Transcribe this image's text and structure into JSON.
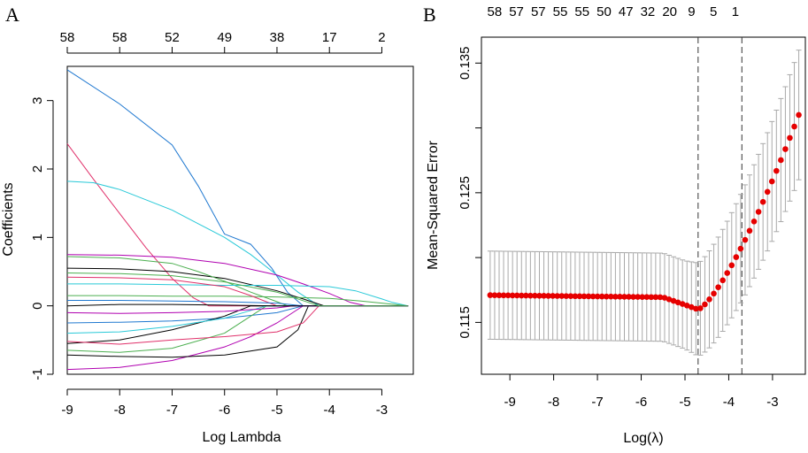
{
  "chart_data": [
    {
      "panel": "A",
      "type": "line",
      "title": "",
      "xlabel": "Log Lambda",
      "ylabel": "Coefficients",
      "xlim": [
        -9.0,
        -2.4
      ],
      "ylim": [
        -1.0,
        3.5
      ],
      "x_ticks": [
        -9,
        -8,
        -7,
        -6,
        -5,
        -4,
        -3
      ],
      "y_ticks": [
        -1,
        0,
        1,
        2,
        3
      ],
      "top_axis_labels": [
        {
          "x": -9,
          "label": "58"
        },
        {
          "x": -8,
          "label": "58"
        },
        {
          "x": -7,
          "label": "52"
        },
        {
          "x": -6,
          "label": "49"
        },
        {
          "x": -5,
          "label": "38"
        },
        {
          "x": -4,
          "label": "17"
        },
        {
          "x": -3,
          "label": "2"
        }
      ],
      "series_note": "Coefficient paths for 58 variables; each path shrinks to 0 as Log Lambda increases.",
      "series": [
        {
          "name": "path-1",
          "color": "#1f78d0",
          "values": [
            [
              -9,
              3.45
            ],
            [
              -8,
              2.95
            ],
            [
              -7,
              2.35
            ],
            [
              -6.5,
              1.75
            ],
            [
              -6.0,
              1.05
            ],
            [
              -5.5,
              0.9
            ],
            [
              -5.1,
              0.55
            ],
            [
              -4.8,
              0.2
            ],
            [
              -4.5,
              0.0
            ]
          ]
        },
        {
          "name": "path-2",
          "color": "#e0306a",
          "values": [
            [
              -9,
              2.37
            ],
            [
              -8.5,
              1.85
            ],
            [
              -8,
              1.35
            ],
            [
              -7.5,
              0.85
            ],
            [
              -7,
              0.4
            ],
            [
              -6.6,
              0.12
            ],
            [
              -6.3,
              0.0
            ]
          ]
        },
        {
          "name": "path-3",
          "color": "#29c9d8",
          "values": [
            [
              -9,
              1.82
            ],
            [
              -8.5,
              1.8
            ],
            [
              -8,
              1.7
            ],
            [
              -7.5,
              1.55
            ],
            [
              -7,
              1.4
            ],
            [
              -6.5,
              1.2
            ],
            [
              -6,
              1.0
            ],
            [
              -5.5,
              0.75
            ],
            [
              -5,
              0.45
            ],
            [
              -4.6,
              0.2
            ],
            [
              -4.2,
              0.0
            ]
          ]
        },
        {
          "name": "path-4",
          "color": "#b000b0",
          "values": [
            [
              -9,
              0.75
            ],
            [
              -8,
              0.74
            ],
            [
              -7,
              0.71
            ],
            [
              -6,
              0.62
            ],
            [
              -5,
              0.45
            ],
            [
              -4.5,
              0.32
            ],
            [
              -4,
              0.18
            ],
            [
              -3.6,
              0.05
            ],
            [
              -3.3,
              0.0
            ]
          ]
        },
        {
          "name": "path-5",
          "color": "#000000",
          "values": [
            [
              -9,
              0.55
            ],
            [
              -8,
              0.54
            ],
            [
              -7,
              0.5
            ],
            [
              -6,
              0.4
            ],
            [
              -5,
              0.22
            ],
            [
              -4.5,
              0.1
            ],
            [
              -4.1,
              0.0
            ]
          ]
        },
        {
          "name": "path-6",
          "color": "#4caf50",
          "values": [
            [
              -9,
              0.72
            ],
            [
              -8,
              0.7
            ],
            [
              -7,
              0.62
            ],
            [
              -6.5,
              0.5
            ],
            [
              -6,
              0.36
            ],
            [
              -5.5,
              0.2
            ],
            [
              -5,
              0.06
            ],
            [
              -4.8,
              0.0
            ]
          ]
        },
        {
          "name": "path-7",
          "color": "#29c9d8",
          "values": [
            [
              -9,
              0.32
            ],
            [
              -8,
              0.32
            ],
            [
              -7,
              0.31
            ],
            [
              -6,
              0.3
            ],
            [
              -5,
              0.3
            ],
            [
              -4,
              0.28
            ],
            [
              -3.5,
              0.22
            ],
            [
              -3,
              0.1
            ],
            [
              -2.8,
              0.05
            ],
            [
              -2.5,
              0.0
            ]
          ]
        },
        {
          "name": "path-8",
          "color": "#4caf50",
          "values": [
            [
              -9,
              0.15
            ],
            [
              -8,
              0.15
            ],
            [
              -7,
              0.14
            ],
            [
              -6,
              0.14
            ],
            [
              -5,
              0.13
            ],
            [
              -4,
              0.11
            ],
            [
              -3.4,
              0.07
            ],
            [
              -3,
              0.04
            ],
            [
              -2.5,
              0.0
            ]
          ]
        },
        {
          "name": "path-9",
          "color": "#e0306a",
          "values": [
            [
              -9,
              0.42
            ],
            [
              -8,
              0.41
            ],
            [
              -7,
              0.38
            ],
            [
              -6,
              0.28
            ],
            [
              -5.5,
              0.15
            ],
            [
              -5,
              0.0
            ]
          ]
        },
        {
          "name": "path-10",
          "color": "#1f78d0",
          "values": [
            [
              -9,
              -0.25
            ],
            [
              -8,
              -0.24
            ],
            [
              -7,
              -0.22
            ],
            [
              -6,
              -0.18
            ],
            [
              -5,
              -0.1
            ],
            [
              -4.5,
              0.0
            ]
          ]
        },
        {
          "name": "path-11",
          "color": "#b000b0",
          "values": [
            [
              -9,
              -0.93
            ],
            [
              -8,
              -0.9
            ],
            [
              -7,
              -0.8
            ],
            [
              -6,
              -0.6
            ],
            [
              -5.5,
              -0.45
            ],
            [
              -5,
              -0.25
            ],
            [
              -4.6,
              -0.05
            ],
            [
              -4.5,
              0.0
            ]
          ]
        },
        {
          "name": "path-12",
          "color": "#000000",
          "values": [
            [
              -9,
              -0.72
            ],
            [
              -8,
              -0.74
            ],
            [
              -7,
              -0.75
            ],
            [
              -6,
              -0.72
            ],
            [
              -5,
              -0.6
            ],
            [
              -4.6,
              -0.35
            ],
            [
              -4.4,
              0.0
            ]
          ]
        },
        {
          "name": "path-13",
          "color": "#4caf50",
          "values": [
            [
              -9,
              -0.65
            ],
            [
              -8,
              -0.68
            ],
            [
              -7,
              -0.62
            ],
            [
              -6,
              -0.4
            ],
            [
              -5.4,
              -0.1
            ],
            [
              -5.2,
              0.0
            ]
          ]
        },
        {
          "name": "path-14",
          "color": "#000000",
          "values": [
            [
              -9,
              -0.55
            ],
            [
              -8,
              -0.5
            ],
            [
              -7,
              -0.35
            ],
            [
              -6,
              -0.15
            ],
            [
              -5.5,
              0.0
            ]
          ]
        },
        {
          "name": "path-15",
          "color": "#e0306a",
          "values": [
            [
              -9,
              -0.52
            ],
            [
              -8,
              -0.56
            ],
            [
              -7,
              -0.5
            ],
            [
              -6,
              -0.45
            ],
            [
              -5,
              -0.38
            ],
            [
              -4.5,
              -0.25
            ],
            [
              -4.2,
              0.0
            ]
          ]
        },
        {
          "name": "path-16",
          "color": "#29c9d8",
          "values": [
            [
              -9,
              -0.4
            ],
            [
              -8,
              -0.38
            ],
            [
              -7,
              -0.3
            ],
            [
              -6,
              -0.18
            ],
            [
              -5.2,
              0.0
            ]
          ]
        },
        {
          "name": "path-17",
          "color": "#1f78d0",
          "values": [
            [
              -9,
              0.08
            ],
            [
              -8,
              0.08
            ],
            [
              -7,
              0.07
            ],
            [
              -6,
              0.06
            ],
            [
              -5,
              0.04
            ],
            [
              -4.5,
              0.0
            ]
          ]
        },
        {
          "name": "path-18",
          "color": "#b000b0",
          "values": [
            [
              -9,
              -0.1
            ],
            [
              -8,
              -0.11
            ],
            [
              -7,
              -0.1
            ],
            [
              -6,
              -0.08
            ],
            [
              -5,
              -0.03
            ],
            [
              -4.7,
              0.0
            ]
          ]
        },
        {
          "name": "path-19",
          "color": "#000000",
          "values": [
            [
              -9,
              0.0
            ],
            [
              -8,
              0.02
            ],
            [
              -7,
              0.02
            ],
            [
              -6,
              0.01
            ],
            [
              -5,
              0.0
            ]
          ]
        },
        {
          "name": "path-20",
          "color": "#4caf50",
          "values": [
            [
              -9,
              0.48
            ],
            [
              -8,
              0.47
            ],
            [
              -7,
              0.44
            ],
            [
              -6,
              0.35
            ],
            [
              -5,
              0.2
            ],
            [
              -4.4,
              0.05
            ],
            [
              -4.2,
              0.0
            ]
          ]
        }
      ]
    },
    {
      "panel": "B",
      "type": "scatter",
      "title": "",
      "xlabel": "Log(λ)",
      "ylabel": "Mean-Squared Error",
      "xlim": [
        -9.65,
        -2.25
      ],
      "ylim": [
        0.111,
        0.137
      ],
      "x_ticks": [
        -9,
        -8,
        -7,
        -6,
        -5,
        -4,
        -3
      ],
      "y_ticks": [
        0.115,
        0.125,
        0.135
      ],
      "y_tick_labels": [
        "0.115",
        "0.125",
        "0.135"
      ],
      "top_axis_labels": [
        {
          "x": -9.35,
          "label": "58"
        },
        {
          "x": -8.85,
          "label": "57"
        },
        {
          "x": -8.35,
          "label": "57"
        },
        {
          "x": -7.85,
          "label": "55"
        },
        {
          "x": -7.35,
          "label": "55"
        },
        {
          "x": -6.85,
          "label": "50"
        },
        {
          "x": -6.35,
          "label": "47"
        },
        {
          "x": -5.85,
          "label": "32"
        },
        {
          "x": -5.35,
          "label": "20"
        },
        {
          "x": -4.85,
          "label": "9"
        },
        {
          "x": -4.35,
          "label": "5"
        },
        {
          "x": -3.85,
          "label": "1"
        }
      ],
      "lambda_min_log": -4.7,
      "lambda_1se_log": -3.7,
      "points": {
        "count": 70,
        "log_lambda_start": -9.45,
        "log_lambda_end": -2.4,
        "mse_profile": "flat ~0.1171 from -9.45 to -5.5, slowly dropping to minimum ~0.1160 at -4.7, then rising to ~0.1310 at -2.4",
        "error_band_half_width_start": 0.0034,
        "error_band_half_width_end": 0.005
      },
      "point_color": "#e60000",
      "errorbar_color": "#a9a9a9"
    }
  ]
}
